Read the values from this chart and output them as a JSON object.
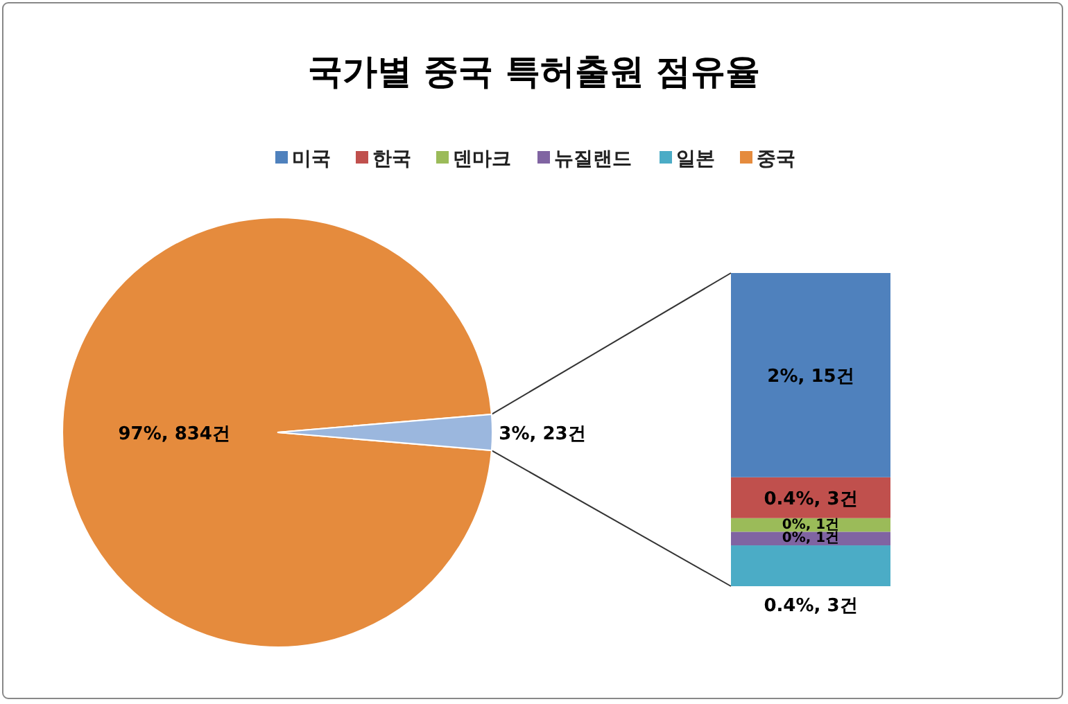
{
  "chart_data": [
    {
      "type": "pie",
      "title": "국가별 중국 특허출원 점유율",
      "categories": [
        "중국",
        null
      ],
      "values": [
        834,
        23
      ],
      "colors": [
        "#e58b3d",
        "#9bb7de"
      ],
      "value_labels": [
        "97%, 834건",
        "3%, 23건"
      ],
      "legend": "top"
    },
    {
      "type": "bar",
      "stacked": true,
      "categories": [
        null
      ],
      "legend": "top",
      "series": [
        {
          "name": "일본",
          "color": "#4bacc6",
          "values": [
            3
          ],
          "value_labels": [
            "0.4%, 3건"
          ]
        },
        {
          "name": "뉴질랜드",
          "color": "#8064a2",
          "values": [
            1
          ],
          "value_labels": [
            "0%, 1건"
          ]
        },
        {
          "name": "덴마크",
          "color": "#9bbb59",
          "values": [
            1
          ],
          "value_labels": [
            "0%, 1건"
          ]
        },
        {
          "name": "한국",
          "color": "#c0504d",
          "values": [
            3
          ],
          "value_labels": [
            "0.4%, 3건"
          ]
        },
        {
          "name": "미국",
          "color": "#4f81bd",
          "values": [
            15
          ],
          "value_labels": [
            "2%, 15건"
          ]
        }
      ]
    }
  ]
}
